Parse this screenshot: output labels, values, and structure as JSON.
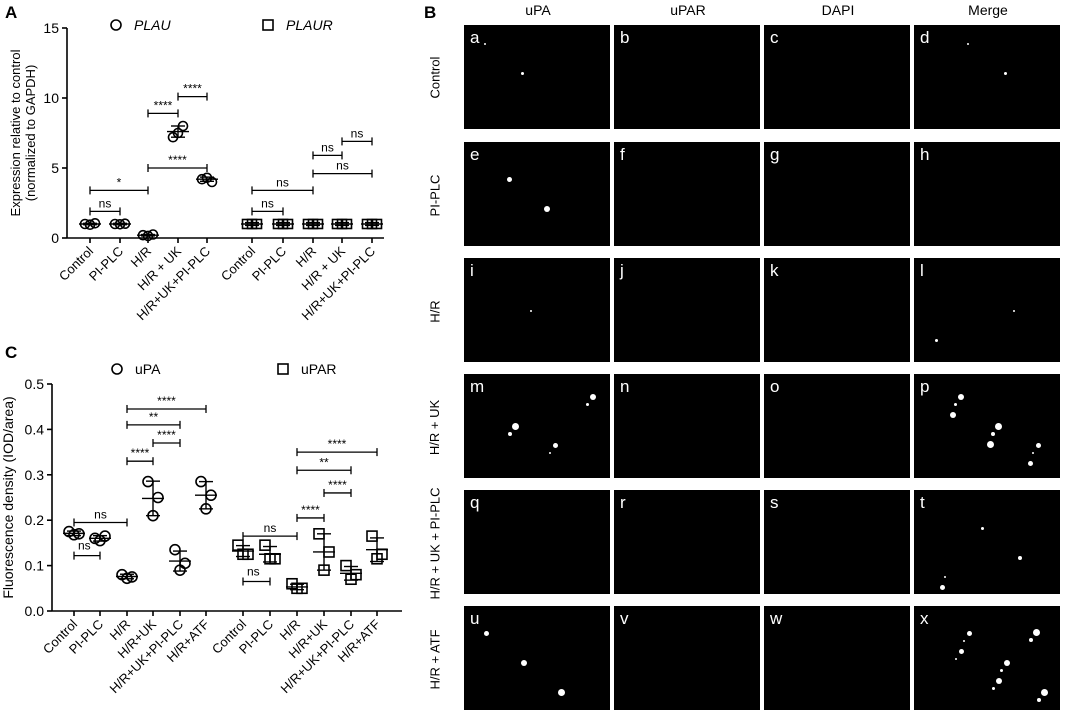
{
  "panel_labels": {
    "a": "A",
    "b": "B",
    "c": "C"
  },
  "chart_data": [
    {
      "panel": "A",
      "type": "scatter",
      "ylabel_lines": [
        "Expression relative to control",
        "(normalized to GAPDH)"
      ],
      "ylim": [
        0,
        15
      ],
      "yticks": [
        0,
        5,
        10,
        15
      ],
      "legend": [
        {
          "name": "PLAU",
          "marker": "circle"
        },
        {
          "name": "PLAUR",
          "marker": "square"
        }
      ],
      "categories": [
        "Control",
        "PI-PLC",
        "H/R",
        "H/R + UK",
        "H/R+UK+PI-PLC"
      ],
      "series": [
        {
          "name": "PLAU",
          "marker": "circle",
          "points": [
            [
              1.0,
              1.05,
              0.95
            ],
            [
              1.0,
              1.02,
              0.98
            ],
            [
              0.2,
              0.25,
              0.15
            ],
            [
              7.2,
              8.0,
              7.5
            ],
            [
              4.2,
              4.0,
              4.3
            ]
          ],
          "means": [
            1.0,
            1.0,
            0.2,
            7.6,
            4.2
          ],
          "sd": [
            0.05,
            0.05,
            0.05,
            0.4,
            0.15
          ]
        },
        {
          "name": "PLAUR",
          "marker": "square",
          "points": [
            [
              1.0,
              1.0,
              1.0
            ],
            [
              1.0,
              1.0,
              1.0
            ],
            [
              1.0,
              1.0,
              1.0
            ],
            [
              1.0,
              1.0,
              1.0
            ],
            [
              1.0,
              1.0,
              1.0
            ]
          ],
          "means": [
            1.0,
            1.0,
            1.0,
            1.0,
            1.0
          ],
          "sd": [
            0.1,
            0.1,
            0.1,
            0.1,
            0.1
          ]
        }
      ],
      "significance": [
        {
          "series": 0,
          "from": 0,
          "to": 1,
          "y": 1.9,
          "label": "ns"
        },
        {
          "series": 0,
          "from": 0,
          "to": 2,
          "y": 3.4,
          "label": "*"
        },
        {
          "series": 0,
          "from": 2,
          "to": 4,
          "y": 5.0,
          "label": "****"
        },
        {
          "series": 0,
          "from": 2,
          "to": 3,
          "y": 8.9,
          "label": "****"
        },
        {
          "series": 0,
          "from": 3,
          "to": 4,
          "y": 10.1,
          "label": "****"
        },
        {
          "series": 1,
          "from": 0,
          "to": 1,
          "y": 1.9,
          "label": "ns"
        },
        {
          "series": 1,
          "from": 0,
          "to": 2,
          "y": 3.4,
          "label": "ns"
        },
        {
          "series": 1,
          "from": 2,
          "to": 4,
          "y": 4.6,
          "label": "ns"
        },
        {
          "series": 1,
          "from": 2,
          "to": 3,
          "y": 5.9,
          "label": "ns"
        },
        {
          "series": 1,
          "from": 3,
          "to": 4,
          "y": 6.9,
          "label": "ns"
        }
      ]
    },
    {
      "panel": "C",
      "type": "scatter",
      "ylabel": "Fluorescence density (IOD/area)",
      "ylim": [
        0,
        0.5
      ],
      "yticks": [
        0.0,
        0.1,
        0.2,
        0.3,
        0.4,
        0.5
      ],
      "ytick_labels": [
        "0.0",
        "0.1",
        "0.2",
        "0.3",
        "0.4",
        "0.5"
      ],
      "legend": [
        {
          "name": "uPA",
          "marker": "circle"
        },
        {
          "name": "uPAR",
          "marker": "square"
        }
      ],
      "categories": [
        "Control",
        "PI-PLC",
        "H/R",
        "H/R+UK",
        "H/R+UK+PI-PLC",
        "H/R+ATF"
      ],
      "series": [
        {
          "name": "uPA",
          "marker": "circle",
          "points": [
            [
              0.175,
              0.17,
              0.168
            ],
            [
              0.16,
              0.165,
              0.155
            ],
            [
              0.08,
              0.075,
              0.072
            ],
            [
              0.285,
              0.25,
              0.21
            ],
            [
              0.135,
              0.105,
              0.09
            ],
            [
              0.285,
              0.255,
              0.225
            ]
          ],
          "means": [
            0.171,
            0.16,
            0.076,
            0.248,
            0.11,
            0.255
          ],
          "sd": [
            0.005,
            0.006,
            0.005,
            0.038,
            0.022,
            0.03
          ]
        },
        {
          "name": "uPAR",
          "marker": "square",
          "points": [
            [
              0.145,
              0.125,
              0.125
            ],
            [
              0.145,
              0.115,
              0.115
            ],
            [
              0.06,
              0.05,
              0.05
            ],
            [
              0.17,
              0.13,
              0.09
            ],
            [
              0.1,
              0.08,
              0.07
            ],
            [
              0.165,
              0.125,
              0.115
            ]
          ],
          "means": [
            0.132,
            0.125,
            0.053,
            0.13,
            0.083,
            0.135
          ],
          "sd": [
            0.012,
            0.017,
            0.006,
            0.04,
            0.015,
            0.026
          ]
        }
      ],
      "significance": [
        {
          "series": 0,
          "from": 0,
          "to": 2,
          "y": 0.195,
          "label": "ns"
        },
        {
          "series": 0,
          "from": 0,
          "to": 1,
          "y": 0.122,
          "label": "ns",
          "label_below": true
        },
        {
          "series": 0,
          "from": 2,
          "to": 3,
          "y": 0.33,
          "label": "****"
        },
        {
          "series": 0,
          "from": 3,
          "to": 4,
          "y": 0.37,
          "label": "****"
        },
        {
          "series": 0,
          "from": 2,
          "to": 4,
          "y": 0.41,
          "label": "**"
        },
        {
          "series": 0,
          "from": 2,
          "to": 5,
          "y": 0.445,
          "label": "****"
        },
        {
          "series": 1,
          "from": 0,
          "to": 2,
          "y": 0.165,
          "label": "ns"
        },
        {
          "series": 1,
          "from": 0,
          "to": 1,
          "y": 0.065,
          "label": "ns",
          "label_below": true
        },
        {
          "series": 1,
          "from": 2,
          "to": 3,
          "y": 0.205,
          "label": "****"
        },
        {
          "series": 1,
          "from": 3,
          "to": 4,
          "y": 0.26,
          "label": "****"
        },
        {
          "series": 1,
          "from": 2,
          "to": 4,
          "y": 0.31,
          "label": "**"
        },
        {
          "series": 1,
          "from": 2,
          "to": 5,
          "y": 0.35,
          "label": "****"
        }
      ]
    }
  ],
  "image_grid": {
    "columns": [
      "uPA",
      "uPAR",
      "DAPI",
      "Merge"
    ],
    "rows": [
      "Control",
      "PI-PLC",
      "H/R",
      "H/R + UK",
      "H/R + UK + PI-PLC",
      "H/R + ATF"
    ],
    "letters": [
      "a",
      "b",
      "c",
      "d",
      "e",
      "f",
      "g",
      "h",
      "i",
      "j",
      "k",
      "l",
      "m",
      "n",
      "o",
      "p",
      "q",
      "r",
      "s",
      "t",
      "u",
      "v",
      "w",
      "x"
    ],
    "background_color": "#000000",
    "signal_color": "#ffffff"
  }
}
